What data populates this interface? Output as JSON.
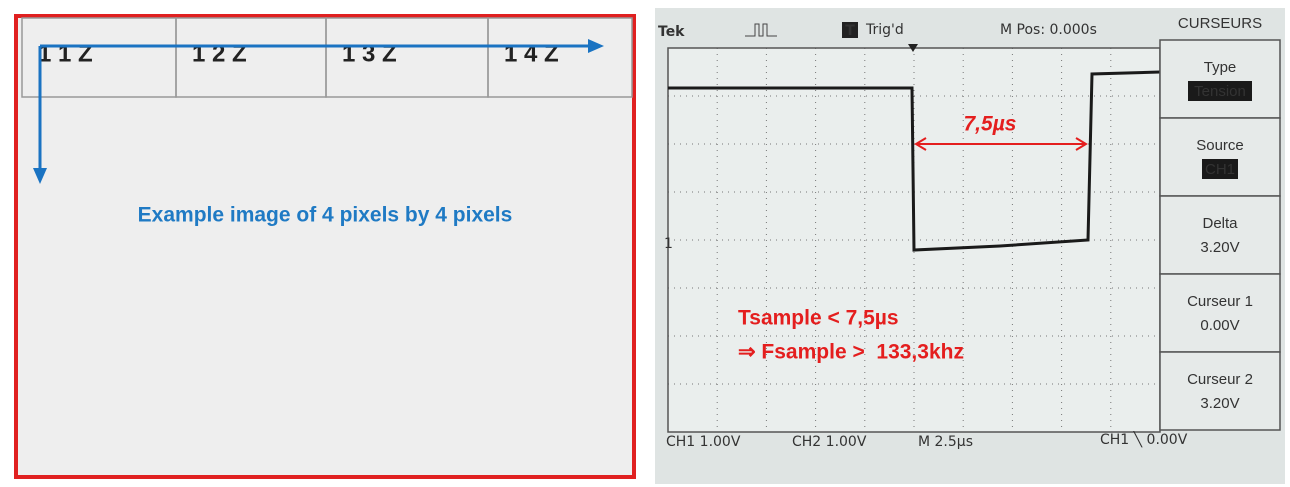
{
  "diagram": {
    "cells": [
      "1 1 Z",
      "1 2 Z",
      "1 3 Z",
      "1 4 Z"
    ],
    "caption": "Example image of 4 pixels by 4 pixels"
  },
  "scope": {
    "header": {
      "brand": "Tek",
      "trigger_icon": "T",
      "trigger": "Trig'd",
      "position": "M Pos: 0.000s"
    },
    "menu": {
      "title": "CURSEURS",
      "items": [
        {
          "label": "Type",
          "value": "Tension"
        },
        {
          "label": "Source",
          "value": "CH1"
        },
        {
          "label": "Delta",
          "value": "3.20V"
        },
        {
          "label": "Curseur 1",
          "value": "0.00V"
        },
        {
          "label": "Curseur 2",
          "value": "3.20V"
        }
      ]
    },
    "footer": [
      "CH1 1.00V",
      "CH2 1.00V",
      "M 2.5µs",
      "CH1 ╲ 0.00V"
    ],
    "channel_marker": "1",
    "annotations": {
      "interval": "7,5µs",
      "line1": "Tsample < 7,5µs",
      "line2": "⇒ Fsample >  133,3khz"
    }
  }
}
